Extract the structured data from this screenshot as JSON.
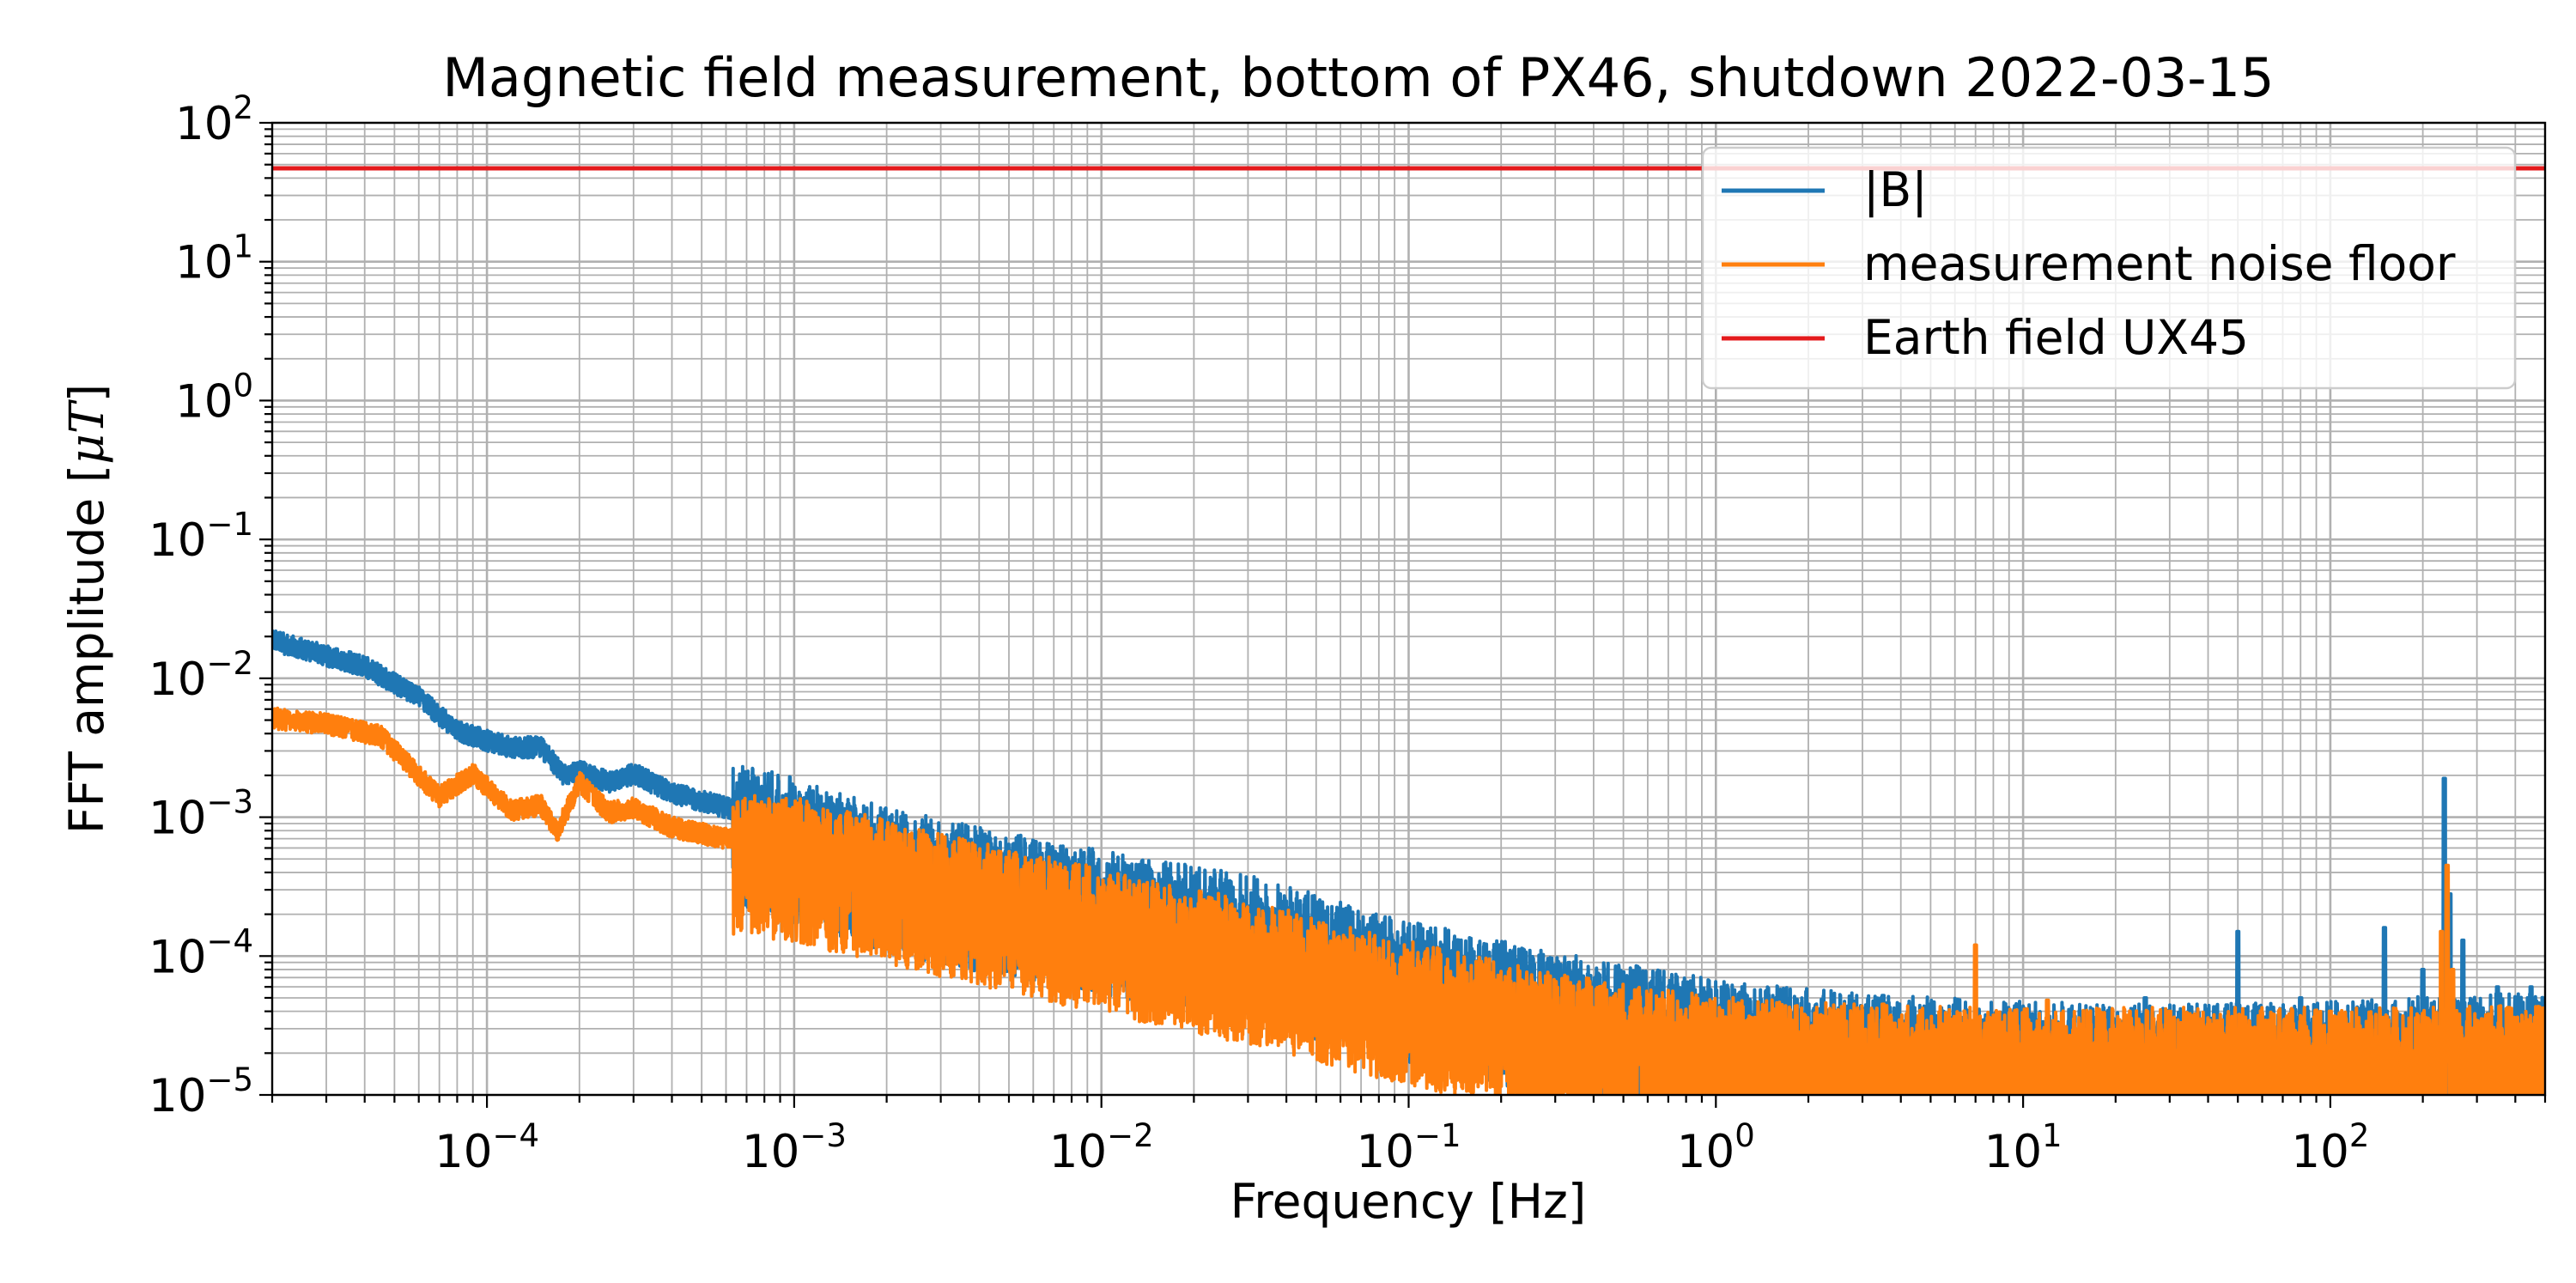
{
  "chart_data": {
    "type": "line",
    "title": "Magnetic field measurement, bottom of PX46, shutdown 2022-03-15",
    "xlabel": "Frequency [Hz]",
    "ylabel_text": "FFT amplitude [",
    "ylabel_mu": "μ",
    "ylabel_unit": "T",
    "ylabel_close": "]",
    "x_scale": "log",
    "y_scale": "log",
    "xlim": [
      2e-05,
      500
    ],
    "ylim": [
      1e-05,
      100
    ],
    "grid": true,
    "legend_position": "top-right",
    "x_ticks": [
      {
        "value": 0.0001,
        "base": "10",
        "exp": "−4"
      },
      {
        "value": 0.001,
        "base": "10",
        "exp": "−3"
      },
      {
        "value": 0.01,
        "base": "10",
        "exp": "−2"
      },
      {
        "value": 0.1,
        "base": "10",
        "exp": "−1"
      },
      {
        "value": 1,
        "base": "10",
        "exp": "0"
      },
      {
        "value": 10,
        "base": "10",
        "exp": "1"
      },
      {
        "value": 100,
        "base": "10",
        "exp": "2"
      }
    ],
    "y_ticks": [
      {
        "value": 1e-05,
        "base": "10",
        "exp": "−5"
      },
      {
        "value": 0.0001,
        "base": "10",
        "exp": "−4"
      },
      {
        "value": 0.001,
        "base": "10",
        "exp": "−3"
      },
      {
        "value": 0.01,
        "base": "10",
        "exp": "−2"
      },
      {
        "value": 0.1,
        "base": "10",
        "exp": "−1"
      },
      {
        "value": 1,
        "base": "10",
        "exp": "0"
      },
      {
        "value": 10,
        "base": "10",
        "exp": "1"
      },
      {
        "value": 100,
        "base": "10",
        "exp": "2"
      }
    ],
    "series": [
      {
        "name": "|B|",
        "color": "#1f77b4",
        "trend_points": [
          [
            2e-05,
            0.02
          ],
          [
            4e-05,
            0.013
          ],
          [
            6e-05,
            0.0078
          ],
          [
            8e-05,
            0.0045
          ],
          [
            0.0001,
            0.0038
          ],
          [
            0.00012,
            0.0034
          ],
          [
            0.00015,
            0.0034
          ],
          [
            0.00018,
            0.0021
          ],
          [
            0.0002,
            0.0023
          ],
          [
            0.00025,
            0.0019
          ],
          [
            0.0003,
            0.0022
          ],
          [
            0.0004,
            0.0016
          ],
          [
            0.0006,
            0.00125
          ],
          [
            0.001,
            0.0009
          ],
          [
            0.002,
            0.00055
          ],
          [
            0.005,
            0.00036
          ],
          [
            0.01,
            0.00027
          ],
          [
            0.03,
            0.00018
          ],
          [
            0.1,
            8.5e-05
          ],
          [
            0.3,
            5e-05
          ],
          [
            1,
            3.2e-05
          ],
          [
            3,
            2.5e-05
          ],
          [
            10,
            2.2e-05
          ],
          [
            30,
            2.1e-05
          ],
          [
            100,
            2.2e-05
          ],
          [
            200,
            2.4e-05
          ],
          [
            500,
            2.6e-05
          ]
        ],
        "spikes": [
          [
            3.5,
            5.2e-05
          ],
          [
            5,
            4.5e-05
          ],
          [
            25,
            5e-05
          ],
          [
            50,
            0.00015
          ],
          [
            80,
            5e-05
          ],
          [
            150,
            0.00016
          ],
          [
            200,
            8e-05
          ],
          [
            235,
            0.0019
          ],
          [
            245,
            0.00028
          ],
          [
            270,
            0.00013
          ],
          [
            350,
            6e-05
          ],
          [
            450,
            6e-05
          ]
        ]
      },
      {
        "name": "measurement noise floor",
        "color": "#ff7f0e",
        "trend_points": [
          [
            2e-05,
            0.0055
          ],
          [
            3e-05,
            0.005
          ],
          [
            4.5e-05,
            0.0041
          ],
          [
            7e-05,
            0.0015
          ],
          [
            9e-05,
            0.0022
          ],
          [
            0.00012,
            0.0012
          ],
          [
            0.00015,
            0.0013
          ],
          [
            0.00017,
            0.00085
          ],
          [
            0.0002,
            0.0019
          ],
          [
            0.00025,
            0.00115
          ],
          [
            0.0003,
            0.00125
          ],
          [
            0.0004,
            0.0009
          ],
          [
            0.0006,
            0.00075
          ],
          [
            0.001,
            0.00065
          ],
          [
            0.002,
            0.00045
          ],
          [
            0.005,
            0.00028
          ],
          [
            0.01,
            0.0002
          ],
          [
            0.03,
            0.00012
          ],
          [
            0.1,
            6e-05
          ],
          [
            0.3,
            3.5e-05
          ],
          [
            1,
            2.4e-05
          ],
          [
            3,
            2.1e-05
          ],
          [
            10,
            2e-05
          ],
          [
            30,
            2e-05
          ],
          [
            100,
            2e-05
          ],
          [
            200,
            2e-05
          ],
          [
            500,
            2.1e-05
          ]
        ],
        "spikes": [
          [
            3.5,
            4.5e-05
          ],
          [
            7,
            0.00012
          ],
          [
            12,
            4.8e-05
          ],
          [
            30,
            4e-05
          ],
          [
            100,
            4e-05
          ],
          [
            230,
            0.00015
          ],
          [
            240,
            0.00045
          ],
          [
            250,
            8e-05
          ]
        ]
      },
      {
        "name": "Earth field UX45",
        "color": "#e41a1c",
        "constant_value": 47
      }
    ]
  }
}
